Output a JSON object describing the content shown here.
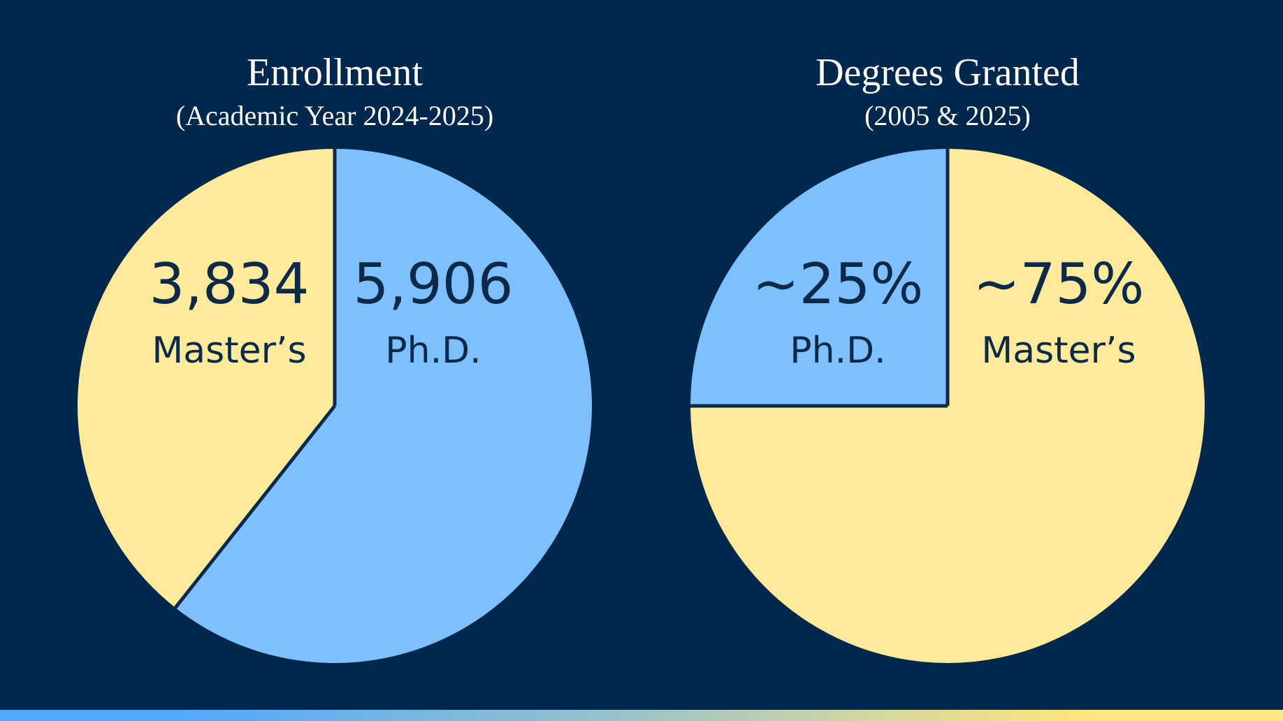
{
  "colors": {
    "background": "#00274c",
    "masters": "#ffe99a",
    "phd": "#7dbfff",
    "text": "#0b2a4a",
    "divider": "#0b2a4a"
  },
  "chart_data": [
    {
      "type": "pie",
      "title": "Enrollment",
      "subtitle": "(Academic Year 2024-2025)",
      "slices": [
        {
          "label": "Ph.D.",
          "value": 5906,
          "display": "5,906",
          "color": "#7dbfff"
        },
        {
          "label": "Master’s",
          "value": 3834,
          "display": "3,834",
          "color": "#ffe99a"
        }
      ]
    },
    {
      "type": "pie",
      "title": "Degrees Granted",
      "subtitle": "(2005 & 2025)",
      "slices": [
        {
          "label": "Master’s",
          "value": 75,
          "display": "~75%",
          "color": "#ffe99a"
        },
        {
          "label": "Ph.D.",
          "value": 25,
          "display": "~25%",
          "color": "#7dbfff"
        }
      ]
    }
  ]
}
